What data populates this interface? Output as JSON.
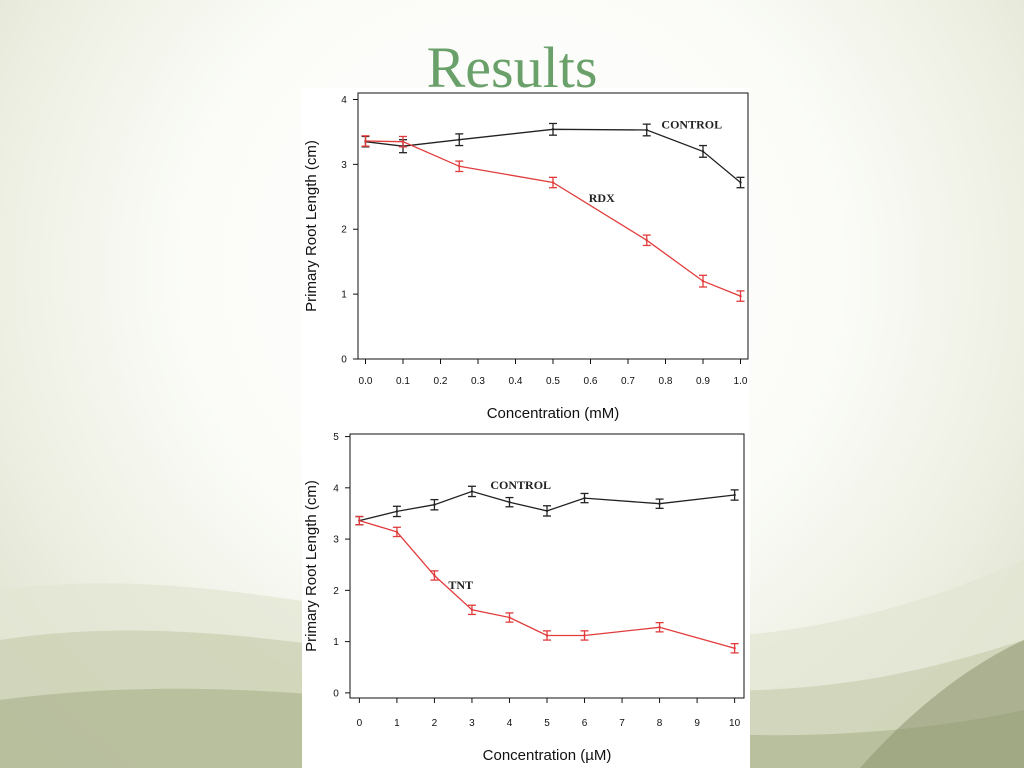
{
  "slide": {
    "title": "Results"
  },
  "colors": {
    "title": "#6aa06a",
    "control": "#222222",
    "treatment": "#e23b3b"
  },
  "chart_data": [
    {
      "type": "line",
      "title": "",
      "xlabel": "Concentration (mM)",
      "ylabel": "Primary Root Length (cm)",
      "xlim": [
        -0.02,
        1.02
      ],
      "ylim": [
        0,
        4.1
      ],
      "xticks": [
        0.0,
        0.1,
        0.2,
        0.3,
        0.4,
        0.5,
        0.6,
        0.7,
        0.8,
        0.9,
        1.0
      ],
      "xtick_labels": [
        "0.0",
        "0.1",
        "0.2",
        "0.3",
        "0.4",
        "0.5",
        "0.6",
        "0.7",
        "0.8",
        "0.9",
        "1.0"
      ],
      "yticks": [
        0,
        1,
        2,
        3,
        4
      ],
      "ytick_labels": [
        "0",
        "1",
        "2",
        "3",
        "4"
      ],
      "grid": false,
      "series": [
        {
          "name": "CONTROL",
          "color": "#222222",
          "label_x": 0.87,
          "label_y": 3.55,
          "x": [
            0.0,
            0.1,
            0.25,
            0.5,
            0.75,
            0.9,
            1.0
          ],
          "y": [
            3.35,
            3.28,
            3.38,
            3.54,
            3.53,
            3.2,
            2.72
          ],
          "err": [
            0.08,
            0.1,
            0.09,
            0.09,
            0.09,
            0.09,
            0.08
          ]
        },
        {
          "name": "RDX",
          "color": "#e23b3b",
          "label_x": 0.63,
          "label_y": 2.42,
          "x": [
            0.0,
            0.1,
            0.25,
            0.5,
            0.75,
            0.9,
            1.0
          ],
          "y": [
            3.36,
            3.35,
            2.97,
            2.72,
            1.83,
            1.2,
            0.97
          ],
          "err": [
            0.08,
            0.08,
            0.08,
            0.08,
            0.08,
            0.09,
            0.08
          ]
        }
      ]
    },
    {
      "type": "line",
      "title": "",
      "xlabel": "Concentration (µM)",
      "ylabel": "Primary Root Length (cm)",
      "xlim": [
        -0.25,
        10.25
      ],
      "ylim": [
        -0.1,
        5.05
      ],
      "xticks": [
        0,
        1,
        2,
        3,
        4,
        5,
        6,
        7,
        8,
        9,
        10
      ],
      "xtick_labels": [
        "0",
        "1",
        "2",
        "3",
        "4",
        "5",
        "6",
        "7",
        "8",
        "9",
        "10"
      ],
      "yticks": [
        0,
        1,
        2,
        3,
        4,
        5
      ],
      "ytick_labels": [
        "0",
        "1",
        "2",
        "3",
        "4",
        "5"
      ],
      "grid": false,
      "series": [
        {
          "name": "CONTROL",
          "color": "#222222",
          "label_x": 4.3,
          "label_y": 3.98,
          "x": [
            0,
            1,
            2,
            3,
            4,
            5,
            6,
            8,
            10
          ],
          "y": [
            3.36,
            3.54,
            3.67,
            3.93,
            3.72,
            3.55,
            3.8,
            3.69,
            3.86
          ],
          "err": [
            0.08,
            0.1,
            0.1,
            0.1,
            0.09,
            0.1,
            0.09,
            0.09,
            0.1
          ]
        },
        {
          "name": "TNT",
          "color": "#e23b3b",
          "label_x": 2.7,
          "label_y": 2.03,
          "x": [
            0,
            1,
            2,
            3,
            4,
            5,
            6,
            8,
            10
          ],
          "y": [
            3.36,
            3.14,
            2.29,
            1.62,
            1.47,
            1.12,
            1.12,
            1.28,
            0.87
          ],
          "err": [
            0.08,
            0.09,
            0.09,
            0.09,
            0.09,
            0.09,
            0.09,
            0.09,
            0.09
          ]
        }
      ]
    }
  ]
}
